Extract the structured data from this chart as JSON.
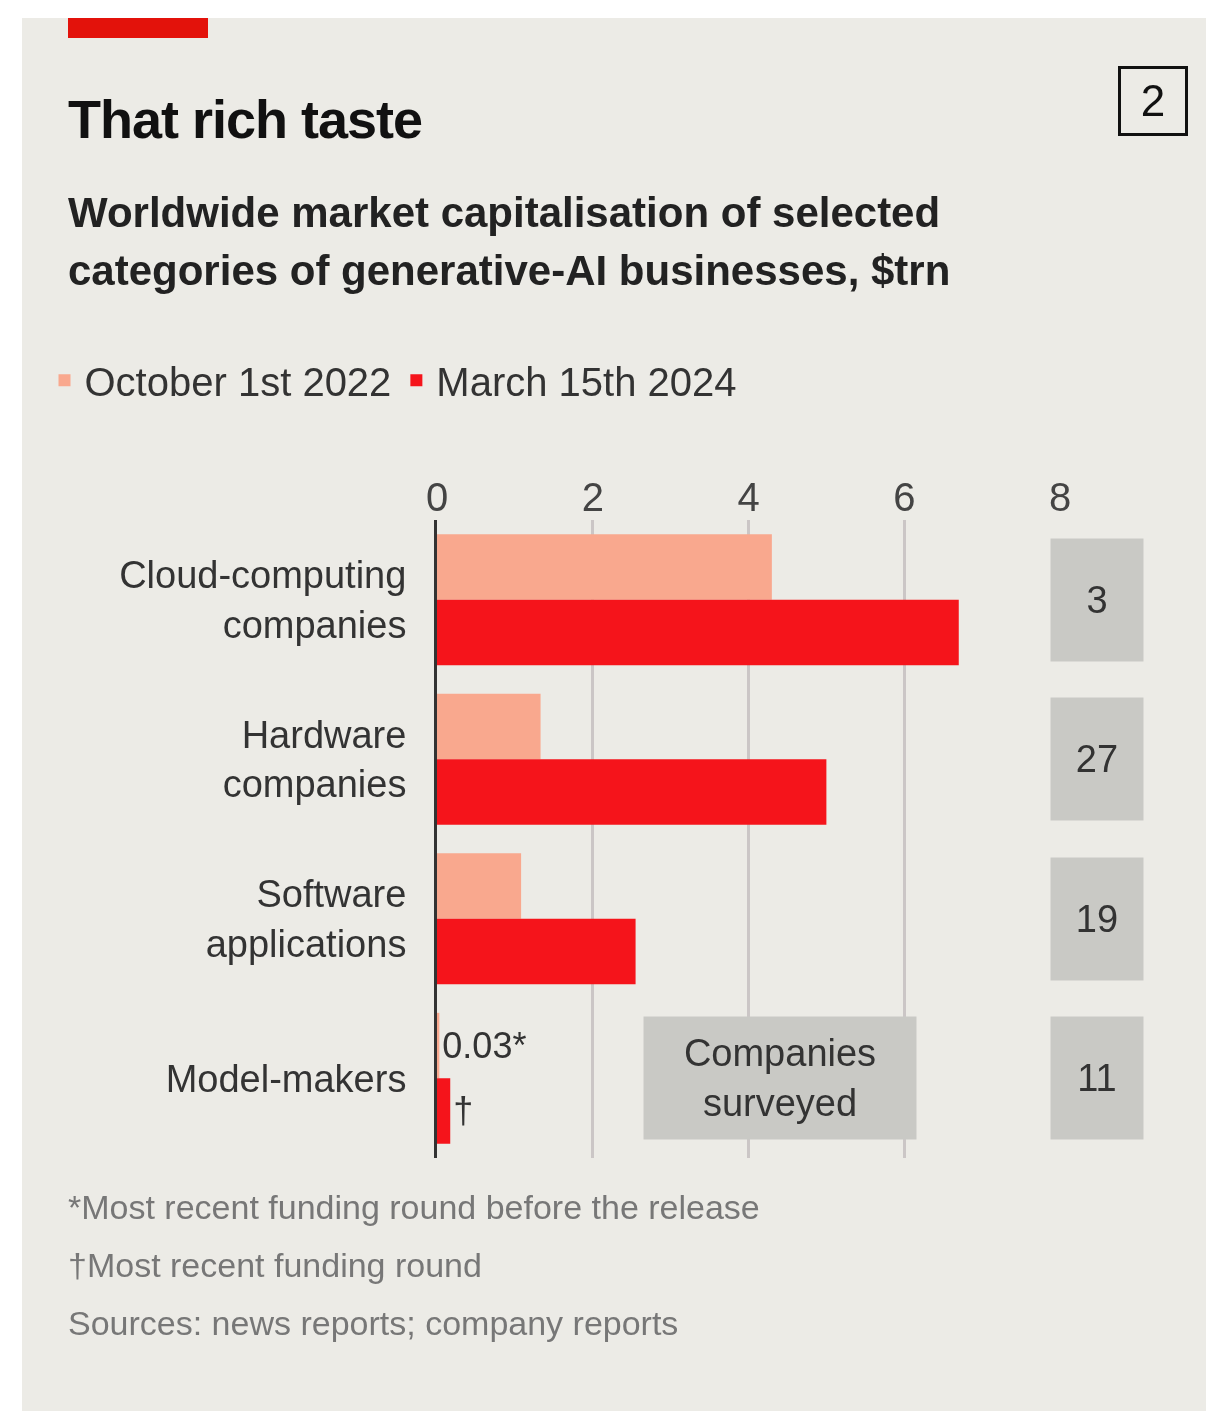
{
  "chart_data": {
    "type": "bar",
    "orientation": "horizontal",
    "title": "That rich taste",
    "subtitle": "Worldwide market capitalisation of selected categories of generative-AI businesses, $trn",
    "categories": [
      "Cloud-computing companies",
      "Hardware companies",
      "Software applications",
      "Model-makers"
    ],
    "series": [
      {
        "name": "October 1st 2022",
        "color": "#f9a88e",
        "values": [
          4.3,
          1.33,
          1.08,
          0.03
        ],
        "value_labels": [
          null,
          null,
          null,
          "0.03*"
        ]
      },
      {
        "name": "March 15th 2024",
        "color": "#f5141b",
        "values": [
          6.7,
          5.0,
          2.55,
          0.17
        ],
        "value_labels": [
          null,
          null,
          null,
          "†"
        ]
      }
    ],
    "xlim": [
      0,
      8
    ],
    "xticks": [
      0,
      2,
      4,
      6,
      8
    ],
    "grid": "x",
    "legend": "top left",
    "annotations": [
      "2",
      "3",
      "27",
      "19",
      "11",
      "Companies surveyed",
      "*Most recent funding round before the release",
      "†Most recent funding round",
      "Sources: news reports; company reports"
    ]
  }
}
